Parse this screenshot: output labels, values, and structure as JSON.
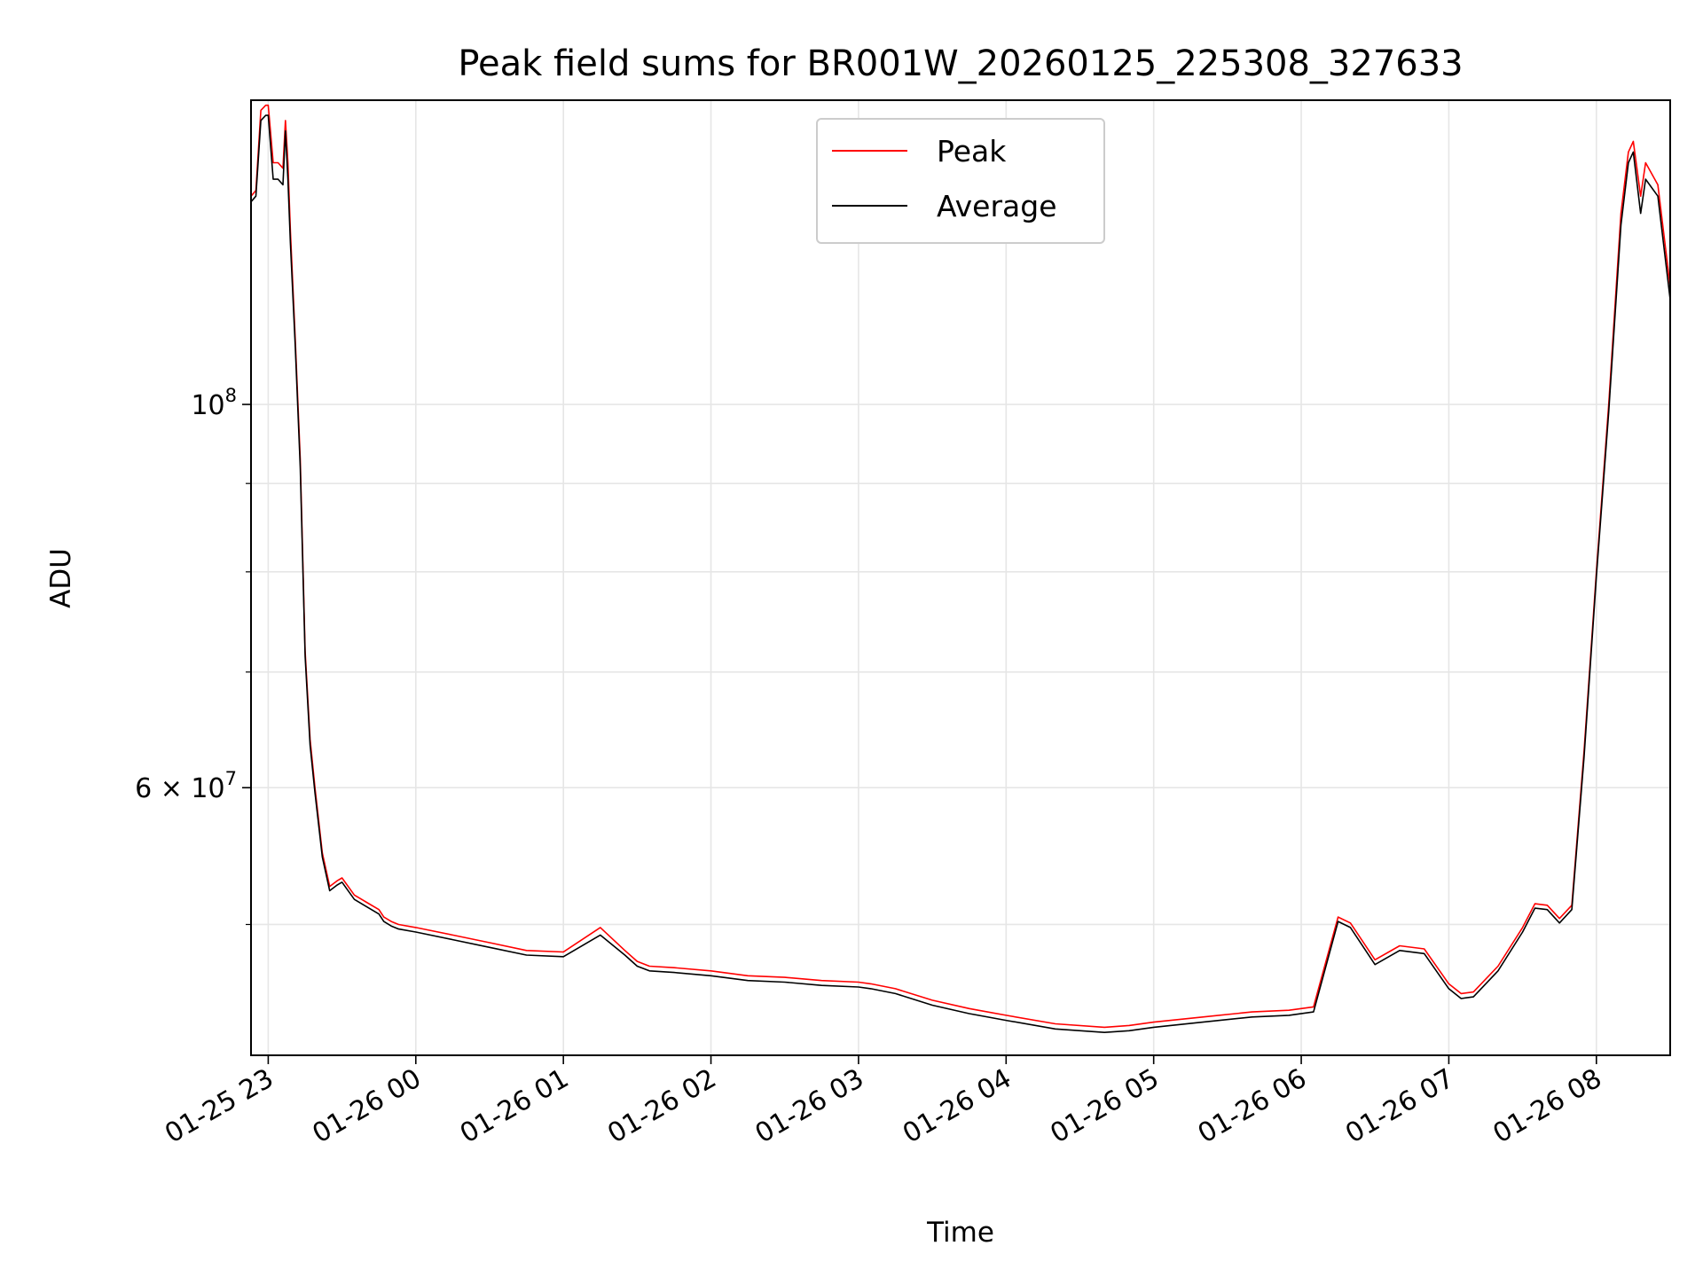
{
  "chart_data": {
    "type": "line",
    "title": "Peak field sums for BR001W_20260125_225308_327633",
    "xlabel": "Time",
    "ylabel": "ADU",
    "yscale": "log",
    "grid": true,
    "legend_position": "upper center",
    "xlim": [
      "2026-01-25 22:53",
      "2026-01-26 08:30"
    ],
    "ylim": [
      42000000,
      150000000
    ],
    "x_ticks": [
      {
        "value": "2026-01-25 23:00",
        "label": "01-25 23"
      },
      {
        "value": "2026-01-26 00:00",
        "label": "01-26 00"
      },
      {
        "value": "2026-01-26 01:00",
        "label": "01-26 01"
      },
      {
        "value": "2026-01-26 02:00",
        "label": "01-26 02"
      },
      {
        "value": "2026-01-26 03:00",
        "label": "01-26 03"
      },
      {
        "value": "2026-01-26 04:00",
        "label": "01-26 04"
      },
      {
        "value": "2026-01-26 05:00",
        "label": "01-26 05"
      },
      {
        "value": "2026-01-26 06:00",
        "label": "01-26 06"
      },
      {
        "value": "2026-01-26 07:00",
        "label": "01-26 07"
      },
      {
        "value": "2026-01-26 08:00",
        "label": "01-26 08"
      }
    ],
    "y_ticks_major": [
      {
        "value": 100000000,
        "base": "10",
        "exp": "8"
      },
      {
        "value": 60000000,
        "base": "6 × 10",
        "exp": "7"
      }
    ],
    "y_ticks_minor": [
      50000000,
      70000000,
      80000000,
      90000000
    ],
    "series": [
      {
        "name": "Peak",
        "color": "#ff0000",
        "x": [
          "2026-01-25 22:53",
          "2026-01-25 22:55",
          "2026-01-25 22:57",
          "2026-01-25 22:59",
          "2026-01-25 23:00",
          "2026-01-25 23:02",
          "2026-01-25 23:04",
          "2026-01-25 23:06",
          "2026-01-25 23:07",
          "2026-01-25 23:08",
          "2026-01-25 23:09",
          "2026-01-25 23:11",
          "2026-01-25 23:13",
          "2026-01-25 23:15",
          "2026-01-25 23:17",
          "2026-01-25 23:19",
          "2026-01-25 23:22",
          "2026-01-25 23:25",
          "2026-01-25 23:28",
          "2026-01-25 23:30",
          "2026-01-25 23:35",
          "2026-01-25 23:40",
          "2026-01-25 23:45",
          "2026-01-25 23:47",
          "2026-01-25 23:50",
          "2026-01-25 23:53",
          "2026-01-26 00:00",
          "2026-01-26 00:15",
          "2026-01-26 00:30",
          "2026-01-26 00:45",
          "2026-01-26 01:00",
          "2026-01-26 01:15",
          "2026-01-26 01:25",
          "2026-01-26 01:30",
          "2026-01-26 01:35",
          "2026-01-26 01:45",
          "2026-01-26 02:00",
          "2026-01-26 02:15",
          "2026-01-26 02:30",
          "2026-01-26 02:45",
          "2026-01-26 03:00",
          "2026-01-26 03:05",
          "2026-01-26 03:15",
          "2026-01-26 03:30",
          "2026-01-26 03:45",
          "2026-01-26 04:00",
          "2026-01-26 04:20",
          "2026-01-26 04:40",
          "2026-01-26 04:50",
          "2026-01-26 05:00",
          "2026-01-26 05:20",
          "2026-01-26 05:40",
          "2026-01-26 05:55",
          "2026-01-26 06:05",
          "2026-01-26 06:15",
          "2026-01-26 06:20",
          "2026-01-26 06:30",
          "2026-01-26 06:40",
          "2026-01-26 06:50",
          "2026-01-26 07:00",
          "2026-01-26 07:05",
          "2026-01-26 07:10",
          "2026-01-26 07:20",
          "2026-01-26 07:30",
          "2026-01-26 07:35",
          "2026-01-26 07:40",
          "2026-01-26 07:45",
          "2026-01-26 07:50",
          "2026-01-26 07:55",
          "2026-01-26 08:00",
          "2026-01-26 08:05",
          "2026-01-26 08:10",
          "2026-01-26 08:13",
          "2026-01-26 08:15",
          "2026-01-26 08:18",
          "2026-01-26 08:20",
          "2026-01-26 08:25",
          "2026-01-26 08:30"
        ],
        "y": [
          132000000,
          133000000,
          148000000,
          149000000,
          149000000,
          138000000,
          138000000,
          137000000,
          146000000,
          138000000,
          126000000,
          109000000,
          93000000,
          72000000,
          64000000,
          60000000,
          55000000,
          52600000,
          53000000,
          53200000,
          52000000,
          51500000,
          51000000,
          50500000,
          50200000,
          50000000,
          49800000,
          49300000,
          48800000,
          48300000,
          48200000,
          49800000,
          48300000,
          47600000,
          47300000,
          47200000,
          47000000,
          46700000,
          46600000,
          46400000,
          46300000,
          46200000,
          45900000,
          45200000,
          44700000,
          44300000,
          43800000,
          43600000,
          43700000,
          43900000,
          44200000,
          44500000,
          44600000,
          44800000,
          50500000,
          50100000,
          47700000,
          48600000,
          48400000,
          46200000,
          45600000,
          45700000,
          47300000,
          49800000,
          51400000,
          51300000,
          50400000,
          51300000,
          63000000,
          80000000,
          100000000,
          129000000,
          140000000,
          142000000,
          132000000,
          138000000,
          134000000,
          117000000
        ],
        "values": [
          132000000,
          133000000,
          148000000,
          149000000,
          149000000,
          138000000,
          138000000,
          137000000,
          146000000,
          138000000,
          126000000,
          109000000,
          93000000,
          72000000,
          64000000,
          60000000,
          55000000,
          52600000,
          53000000,
          53200000,
          52000000,
          51500000,
          51000000,
          50500000,
          50200000,
          50000000,
          49800000,
          49300000,
          48800000,
          48300000,
          48200000,
          49800000,
          48300000,
          47600000,
          47300000,
          47200000,
          47000000,
          46700000,
          46600000,
          46400000,
          46300000,
          46200000,
          45900000,
          45200000,
          44700000,
          44300000,
          43800000,
          43600000,
          43700000,
          43900000,
          44200000,
          44500000,
          44600000,
          44800000,
          50500000,
          50100000,
          47700000,
          48600000,
          48400000,
          46200000,
          45600000,
          45700000,
          47300000,
          49800000,
          51400000,
          51300000,
          50400000,
          51300000,
          63000000,
          80000000,
          100000000,
          129000000,
          140000000,
          142000000,
          132000000,
          138000000,
          134000000,
          117000000
        ]
      },
      {
        "name": "Average",
        "color": "#000000",
        "x": [
          "2026-01-25 22:53",
          "2026-01-25 22:55",
          "2026-01-25 22:57",
          "2026-01-25 22:59",
          "2026-01-25 23:00",
          "2026-01-25 23:02",
          "2026-01-25 23:04",
          "2026-01-25 23:06",
          "2026-01-25 23:07",
          "2026-01-25 23:08",
          "2026-01-25 23:09",
          "2026-01-25 23:11",
          "2026-01-25 23:13",
          "2026-01-25 23:15",
          "2026-01-25 23:17",
          "2026-01-25 23:19",
          "2026-01-25 23:22",
          "2026-01-25 23:25",
          "2026-01-25 23:28",
          "2026-01-25 23:30",
          "2026-01-25 23:35",
          "2026-01-25 23:40",
          "2026-01-25 23:45",
          "2026-01-25 23:47",
          "2026-01-25 23:50",
          "2026-01-25 23:53",
          "2026-01-26 00:00",
          "2026-01-26 00:15",
          "2026-01-26 00:30",
          "2026-01-26 00:45",
          "2026-01-26 01:00",
          "2026-01-26 01:15",
          "2026-01-26 01:25",
          "2026-01-26 01:30",
          "2026-01-26 01:35",
          "2026-01-26 01:45",
          "2026-01-26 02:00",
          "2026-01-26 02:15",
          "2026-01-26 02:30",
          "2026-01-26 02:45",
          "2026-01-26 03:00",
          "2026-01-26 03:05",
          "2026-01-26 03:15",
          "2026-01-26 03:30",
          "2026-01-26 03:45",
          "2026-01-26 04:00",
          "2026-01-26 04:20",
          "2026-01-26 04:40",
          "2026-01-26 04:50",
          "2026-01-26 05:00",
          "2026-01-26 05:20",
          "2026-01-26 05:40",
          "2026-01-26 05:55",
          "2026-01-26 06:05",
          "2026-01-26 06:15",
          "2026-01-26 06:20",
          "2026-01-26 06:30",
          "2026-01-26 06:40",
          "2026-01-26 06:50",
          "2026-01-26 07:00",
          "2026-01-26 07:05",
          "2026-01-26 07:10",
          "2026-01-26 07:20",
          "2026-01-26 07:30",
          "2026-01-26 07:35",
          "2026-01-26 07:40",
          "2026-01-26 07:45",
          "2026-01-26 07:50",
          "2026-01-26 07:55",
          "2026-01-26 08:00",
          "2026-01-26 08:05",
          "2026-01-26 08:10",
          "2026-01-26 08:13",
          "2026-01-26 08:15",
          "2026-01-26 08:18",
          "2026-01-26 08:20",
          "2026-01-26 08:25",
          "2026-01-26 08:30"
        ],
        "y": [
          131000000,
          132000000,
          146000000,
          147000000,
          147000000,
          135000000,
          135000000,
          134000000,
          144000000,
          135000000,
          124000000,
          108000000,
          92000000,
          71500000,
          63500000,
          59600000,
          54700000,
          52300000,
          52700000,
          52900000,
          51700000,
          51200000,
          50700000,
          50200000,
          49900000,
          49700000,
          49500000,
          49000000,
          48500000,
          48000000,
          47900000,
          49300000,
          48000000,
          47300000,
          47000000,
          46900000,
          46700000,
          46400000,
          46300000,
          46100000,
          46000000,
          45900000,
          45600000,
          44900000,
          44400000,
          44000000,
          43500000,
          43300000,
          43400000,
          43600000,
          43900000,
          44200000,
          44300000,
          44500000,
          50200000,
          49800000,
          47400000,
          48300000,
          48100000,
          45900000,
          45300000,
          45400000,
          47000000,
          49500000,
          51100000,
          51000000,
          50100000,
          51000000,
          62500000,
          79500000,
          99000000,
          127000000,
          138000000,
          140000000,
          129000000,
          135000000,
          132000000,
          115000000
        ],
        "values": [
          131000000,
          132000000,
          146000000,
          147000000,
          147000000,
          135000000,
          135000000,
          134000000,
          144000000,
          135000000,
          124000000,
          108000000,
          92000000,
          71500000,
          63500000,
          59600000,
          54700000,
          52300000,
          52700000,
          52900000,
          51700000,
          51200000,
          50700000,
          50200000,
          49900000,
          49700000,
          49500000,
          49000000,
          48500000,
          48000000,
          47900000,
          49300000,
          48000000,
          47300000,
          47000000,
          46900000,
          46700000,
          46400000,
          46300000,
          46100000,
          46000000,
          45900000,
          45600000,
          44900000,
          44400000,
          44000000,
          43500000,
          43300000,
          43400000,
          43600000,
          43900000,
          44200000,
          44300000,
          44500000,
          50200000,
          49800000,
          47400000,
          48300000,
          48100000,
          45900000,
          45300000,
          45400000,
          47000000,
          49500000,
          51100000,
          51000000,
          50100000,
          51000000,
          62500000,
          79500000,
          99000000,
          127000000,
          138000000,
          140000000,
          129000000,
          135000000,
          132000000,
          115000000
        ]
      }
    ]
  }
}
